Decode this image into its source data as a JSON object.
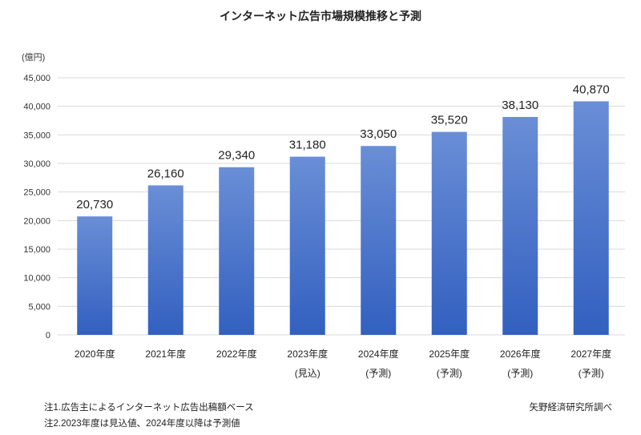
{
  "chart_data": {
    "type": "bar",
    "title": "インターネット広告市場規模推移と予測",
    "ylabel": "(億円)",
    "xlabel": "",
    "ylim": [
      0,
      45000
    ],
    "yticks": [
      "0",
      "5,000",
      "10,000",
      "15,000",
      "20,000",
      "25,000",
      "30,000",
      "35,000",
      "40,000",
      "45,000"
    ],
    "grid": true,
    "categories": [
      {
        "year": "2020年度",
        "note": ""
      },
      {
        "year": "2021年度",
        "note": ""
      },
      {
        "year": "2022年度",
        "note": ""
      },
      {
        "year": "2023年度",
        "note": "(見込)"
      },
      {
        "year": "2024年度",
        "note": "(予測)"
      },
      {
        "year": "2025年度",
        "note": "(予測)"
      },
      {
        "year": "2026年度",
        "note": "(予測)"
      },
      {
        "year": "2027年度",
        "note": "(予測)"
      }
    ],
    "values": [
      20730,
      26160,
      29340,
      31180,
      33050,
      35520,
      38130,
      40870
    ],
    "data_labels": [
      "20,730",
      "26,160",
      "29,340",
      "31,180",
      "33,050",
      "35,520",
      "38,130",
      "40,870"
    ],
    "colors": {
      "bar_top": "#6a8ed6",
      "bar_bottom": "#3260c0",
      "grid": "#d9d9d9"
    }
  },
  "notes": {
    "note1": "注1.広告主によるインターネット広告出稿額ベース",
    "note2": "注2.2023年度は見込値、2024年度以降は予測値",
    "source": "矢野経済研究所調べ"
  }
}
